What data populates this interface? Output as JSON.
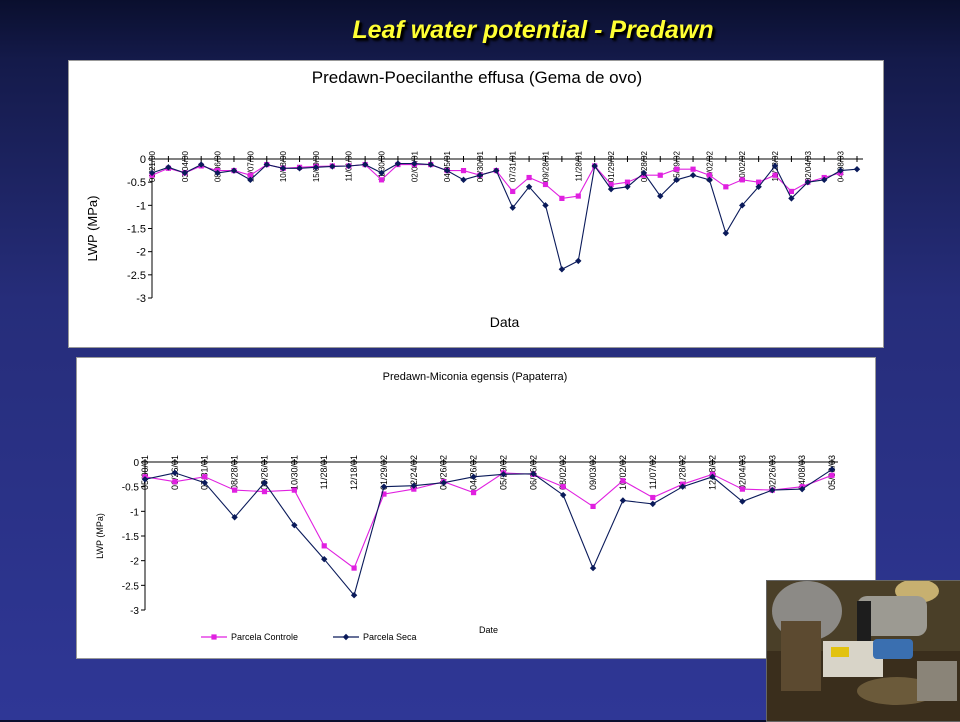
{
  "slide_title": "Leaf water potential -  Predawn",
  "colors": {
    "controle": "#e020e0",
    "seca": "#0a1a5a",
    "title": "#ffff33"
  },
  "chart_data": [
    {
      "type": "line",
      "title": "Predawn-Poecilanthe effusa (Gema de ovo)",
      "xlabel": "Data",
      "ylabel": "LWP (MPa)",
      "ylim": [
        -3,
        0
      ],
      "yticks": [
        "0",
        "-0.5",
        "-1",
        "-1.5",
        "-2",
        "-2.5",
        "-3"
      ],
      "categories": [
        "01/21/00",
        "",
        "03/04/00",
        "",
        "08/06/00",
        "",
        "13/07/00",
        "",
        "10/08/00",
        "",
        "15/09/00",
        "",
        "11/01/00",
        "",
        "11/30/00",
        "",
        "02/06/01",
        "",
        "04/05/01",
        "",
        "05/30/01",
        "",
        "07/31/01",
        "",
        "09/28/01",
        "",
        "11/28/01",
        "",
        "01/29/02",
        "",
        "03/28/02",
        "",
        "05/29/02",
        "",
        "08/02/02",
        "",
        "10/02/02",
        "",
        "11/28/02",
        "",
        "02/04/03",
        "",
        "04/08/03",
        ""
      ],
      "series": [
        {
          "values": [
            -0.35,
            -0.2,
            -0.3,
            -0.15,
            -0.25,
            -0.25,
            -0.35,
            -0.12,
            -0.2,
            -0.18,
            -0.16,
            -0.15,
            -0.15,
            -0.12,
            -0.45,
            -0.12,
            -0.12,
            -0.12,
            -0.25,
            -0.25,
            -0.35,
            -0.25,
            -0.7,
            -0.4,
            -0.55,
            -0.85,
            -0.8,
            -0.15,
            -0.55,
            -0.5,
            -0.35,
            -0.35,
            -0.22,
            -0.22,
            -0.35,
            -0.6,
            -0.45,
            -0.5,
            -0.35,
            -0.7,
            -0.5,
            -0.4,
            -0.3,
            null
          ]
        },
        {
          "values": [
            -0.3,
            -0.18,
            -0.3,
            -0.12,
            -0.3,
            -0.25,
            -0.45,
            -0.12,
            -0.2,
            -0.2,
            -0.18,
            -0.16,
            -0.15,
            -0.12,
            -0.3,
            -0.1,
            -0.1,
            -0.12,
            -0.25,
            -0.45,
            -0.35,
            -0.25,
            -1.05,
            -0.6,
            -1.0,
            -2.38,
            -2.2,
            -0.15,
            -0.65,
            -0.6,
            -0.3,
            -0.8,
            -0.45,
            -0.35,
            -0.45,
            -1.6,
            -1.0,
            -0.6,
            -0.15,
            -0.85,
            -0.5,
            -0.45,
            -0.25,
            -0.22
          ]
        }
      ]
    },
    {
      "type": "line",
      "title": "Predawn-Miconia egensis (Papaterra)",
      "xlabel": "Date",
      "ylabel": "LWP (MPa)",
      "ylim": [
        -3,
        0
      ],
      "yticks": [
        "0",
        "-0.5",
        "-1",
        "-1.5",
        "-2",
        "-2.5",
        "-3"
      ],
      "categories": [
        "05/30/01",
        "06/26/01",
        "07/31/01",
        "08/28/01",
        "09/26/01",
        "10/30/01",
        "11/28/01",
        "12/18/01",
        "01/29/02",
        "02/24/02",
        "03/26/02",
        "04/26/02",
        "05/29/02",
        "06/26/02",
        "08/02/02",
        "09/03/02",
        "10/02/02",
        "11/07/02",
        "11/28/02",
        "12/18/02",
        "02/04/03",
        "02/26/03",
        "04/08/03",
        "05/08/03"
      ],
      "series": [
        {
          "name": "Parcela Controle",
          "values": [
            -0.3,
            -0.4,
            -0.3,
            -0.57,
            -0.6,
            -0.57,
            -1.7,
            -2.15,
            -0.65,
            -0.55,
            -0.4,
            -0.62,
            -0.22,
            -0.25,
            -0.5,
            -0.9,
            -0.38,
            -0.72,
            -0.45,
            -0.25,
            -0.55,
            -0.57,
            -0.5,
            -0.27
          ]
        },
        {
          "name": "Parcela Seca",
          "values": [
            -0.35,
            -0.22,
            -0.42,
            -1.12,
            -0.42,
            -1.28,
            -1.97,
            -2.7,
            -0.5,
            -0.48,
            -0.42,
            -0.3,
            -0.25,
            -0.24,
            -0.67,
            -2.15,
            -0.78,
            -0.85,
            -0.5,
            -0.3,
            -0.8,
            -0.57,
            -0.55,
            -0.15
          ]
        }
      ]
    }
  ]
}
